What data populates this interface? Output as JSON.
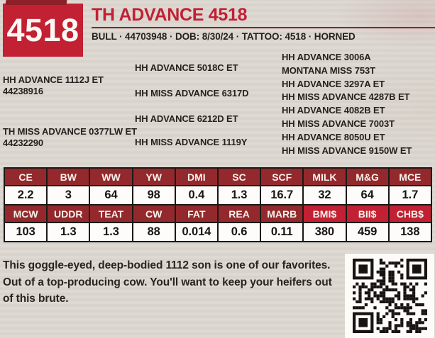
{
  "colors": {
    "accent_red": "#C22033",
    "dark_red_header": "#93292D",
    "background": "#DCD8D1",
    "text": "#26211E"
  },
  "header": {
    "tag_number": "4518",
    "title": "TH ADVANCE 4518",
    "subtitle": "BULL · 44703948 · DOB: 8/30/24 · TATTOO: 4518 · HORNED"
  },
  "pedigree": {
    "sire": {
      "name": "HH ADVANCE 1112J ET",
      "reg": "44238916"
    },
    "dam": {
      "name": "TH MISS ADVANCE 0377LW ET",
      "reg": "44232290"
    },
    "grandparents": [
      "HH ADVANCE 5018C ET",
      "HH MISS ADVANCE 6317D",
      "HH ADVANCE 6212D ET",
      "HH MISS ADVANCE 1119Y"
    ],
    "great_grandparents": [
      "HH ADVANCE 3006A",
      "MONTANA MISS 753T",
      "HH ADVANCE 3297A ET",
      "HH MISS ADVANCE 4287B ET",
      "HH ADVANCE 4082B ET",
      "HH MISS ADVANCE 7003T",
      "HH ADVANCE 8050U ET",
      "HH MISS ADVANCE 9150W ET"
    ]
  },
  "epd": {
    "row1_headers": [
      "CE",
      "BW",
      "WW",
      "YW",
      "DMI",
      "SC",
      "SCF",
      "MILK",
      "M&G",
      "MCE"
    ],
    "row1_values": [
      "2.2",
      "3",
      "64",
      "98",
      "0.4",
      "1.3",
      "16.7",
      "32",
      "64",
      "1.7"
    ],
    "row2_headers": [
      "MCW",
      "UDDR",
      "TEAT",
      "CW",
      "FAT",
      "REA",
      "MARB",
      "BMI$",
      "BII$",
      "CHB$"
    ],
    "row2_values": [
      "103",
      "1.3",
      "1.3",
      "88",
      "0.014",
      "0.6",
      "0.11",
      "380",
      "459",
      "138"
    ]
  },
  "description": "This goggle-eyed, deep-bodied 1112 son is one of our favorites.\nOut of a top-producing cow. You'll want to keep your heifers out\nof this brute."
}
